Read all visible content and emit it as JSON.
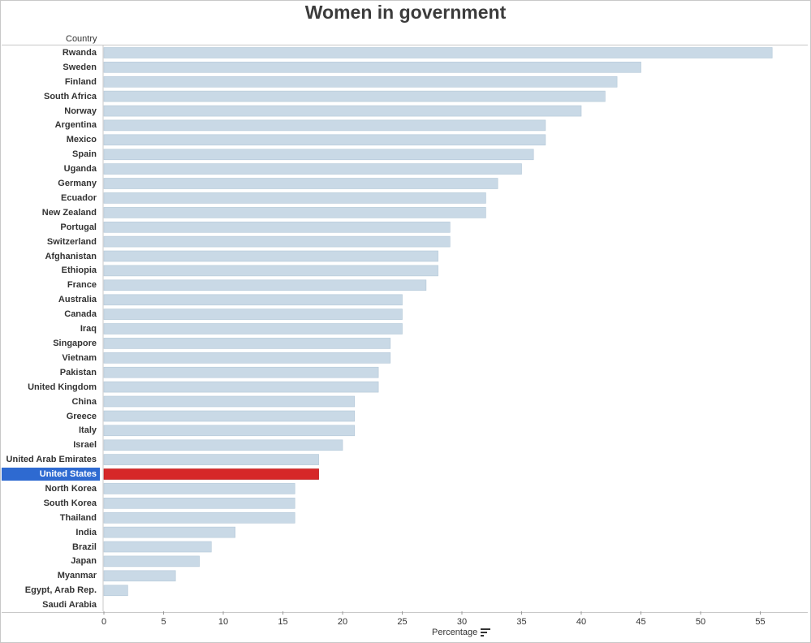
{
  "chart_data": {
    "type": "bar",
    "orientation": "horizontal",
    "title": "Women in government",
    "row_header": "Country",
    "xlabel": "Percentage",
    "xlim": [
      0,
      57
    ],
    "xticks": [
      0,
      5,
      10,
      15,
      20,
      25,
      30,
      35,
      40,
      45,
      50,
      55
    ],
    "highlighted": "United States",
    "colors": {
      "bar": "#c9d9e6",
      "bar_edge": "#b3c7d8",
      "highlight": "#d62728",
      "selected_label_bg": "#2e6ad1"
    },
    "categories": [
      "Rwanda",
      "Sweden",
      "Finland",
      "South Africa",
      "Norway",
      "Argentina",
      "Mexico",
      "Spain",
      "Uganda",
      "Germany",
      "Ecuador",
      "New Zealand",
      "Portugal",
      "Switzerland",
      "Afghanistan",
      "Ethiopia",
      "France",
      "Australia",
      "Canada",
      "Iraq",
      "Singapore",
      "Vietnam",
      "Pakistan",
      "United Kingdom",
      "China",
      "Greece",
      "Italy",
      "Israel",
      "United Arab Emirates",
      "United States",
      "North Korea",
      "South Korea",
      "Thailand",
      "India",
      "Brazil",
      "Japan",
      "Myanmar",
      "Egypt, Arab Rep.",
      "Saudi Arabia"
    ],
    "values": [
      56,
      45,
      43,
      42,
      40,
      37,
      37,
      36,
      35,
      33,
      32,
      32,
      29,
      29,
      28,
      28,
      27,
      25,
      25,
      25,
      24,
      24,
      23,
      23,
      21,
      21,
      21,
      20,
      18,
      18,
      16,
      16,
      16,
      11,
      9,
      8,
      6,
      2,
      0
    ]
  },
  "icons": {
    "sort": "sort-descending-icon"
  }
}
